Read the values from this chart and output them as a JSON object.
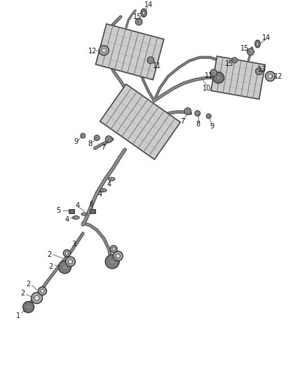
{
  "background_color": "#ffffff",
  "fig_width": 4.38,
  "fig_height": 5.33,
  "dpi": 100,
  "pipe_color": "#555555",
  "part_edge_color": "#333333",
  "label_color": "#111111",
  "label_fs": 7.0,
  "line_lw": 0.6,
  "pipe_lw_main": 3.5,
  "pipe_lw_small": 2.0,
  "corrugation_color": "#777777",
  "muffler_face": "#cccccc",
  "muffler_edge": "#444444"
}
